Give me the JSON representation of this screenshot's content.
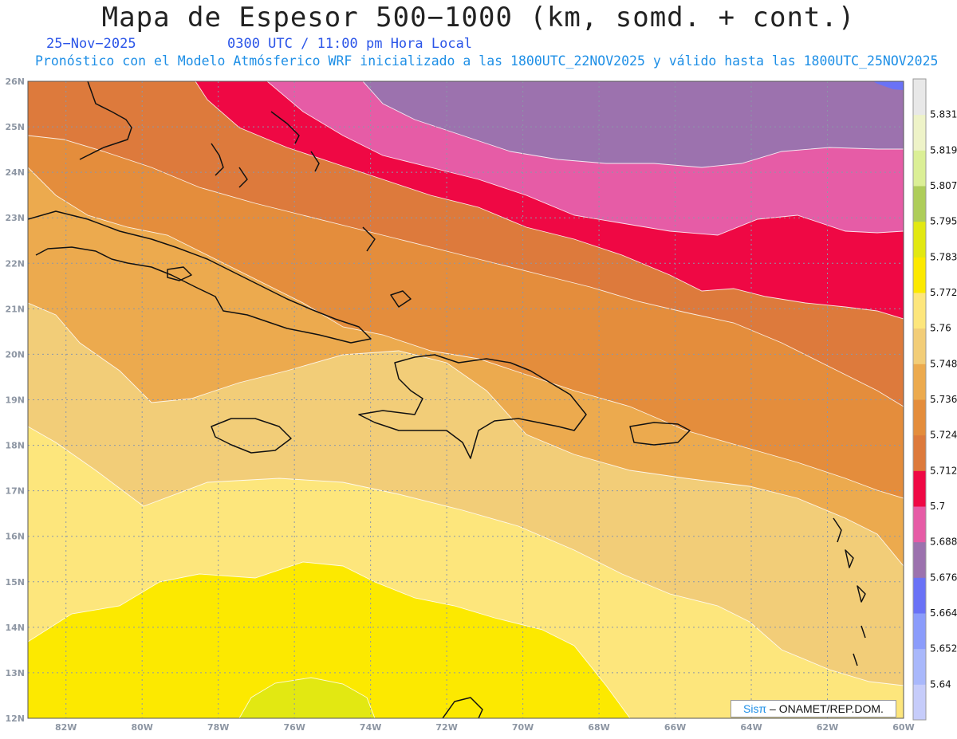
{
  "title": "Mapa de Espesor 500−1000 (km, somd. + cont.)",
  "date_label": "25−Nov−2025",
  "time_label": "0300 UTC / 11:00 pm Hora Local",
  "model_label": "Pronóstico con el Modelo Atmósferico WRF inicializado a las 1800UTC_22NOV2025 y válido hasta las  1800UTC_25NOV2025",
  "credit": {
    "brand": "Sisπ",
    "text": "– ONAMET/REP.DOM."
  },
  "map": {
    "lon_range": [
      -83,
      -60
    ],
    "lat_range": [
      12,
      26
    ],
    "lon_ticks": [
      "82W",
      "80W",
      "78W",
      "76W",
      "74W",
      "72W",
      "70W",
      "68W",
      "66W",
      "64W",
      "62W",
      "60W"
    ],
    "lat_ticks": [
      "12N",
      "13N",
      "14N",
      "15N",
      "16N",
      "17N",
      "18N",
      "19N",
      "20N",
      "21N",
      "22N",
      "23N",
      "24N",
      "25N",
      "26N"
    ]
  },
  "colorbar": {
    "labels": [
      "5.64",
      "5.652",
      "5.664",
      "5.676",
      "5.688",
      "5.7",
      "5.712",
      "5.724",
      "5.736",
      "5.748",
      "5.76",
      "5.772",
      "5.783",
      "5.795",
      "5.807",
      "5.819",
      "5.831"
    ],
    "colors": [
      "#c6ccfa",
      "#a9b8fb",
      "#8b9cfb",
      "#6a72f6",
      "#9c72ae",
      "#e65ca6",
      "#ef0844",
      "#dd7a3c",
      "#e48d3c",
      "#ecaa4e",
      "#f2cd78",
      "#fde67c",
      "#fce900",
      "#e2e812",
      "#aecd5a",
      "#dbef96",
      "#eef3c8",
      "#e8e8e8"
    ]
  },
  "bands": {
    "yellow": "#fce900",
    "lime": "#e2e812",
    "light_yellow": "#fde67c",
    "tan": "#f2cd78",
    "orange_light": "#ecaa4e",
    "orange": "#e48d3c",
    "orange_dark": "#dd7a3c",
    "red": "#ef0844",
    "pink": "#e65ca6",
    "purple": "#9c72ae",
    "blue": "#6a72f6"
  }
}
